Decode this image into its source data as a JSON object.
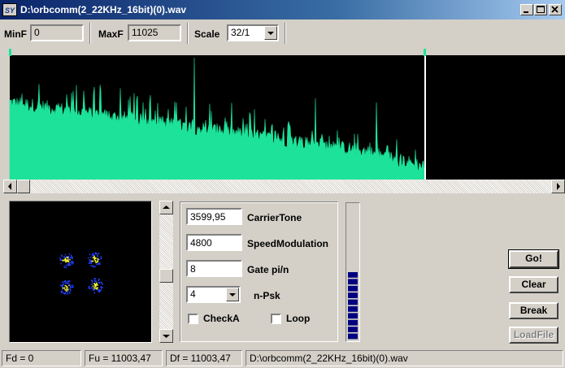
{
  "window": {
    "title": "D:\\orbcomm(2_22KHz_16bit)(0).wav",
    "icon_label": "SY",
    "minimize_icon": "minimize-icon",
    "maximize_icon": "maximize-icon",
    "close_icon": "close-icon"
  },
  "toolbar": {
    "minf_label": "MinF",
    "minf_value": "0",
    "maxf_label": "MaxF",
    "maxf_value": "11025",
    "scale_label": "Scale",
    "scale_value": "32/1"
  },
  "params": {
    "carrier_value": "3599,95",
    "carrier_label": "CarrierTone",
    "speed_value": "4800",
    "speed_label": "SpeedModulation",
    "gate_value": "8",
    "gate_label": "Gate pi/n",
    "psk_value": "4",
    "psk_label": "n-Psk",
    "checka_label": "CheckA",
    "loop_label": "Loop"
  },
  "buttons": {
    "go": "Go!",
    "clear": "Clear",
    "break": "Break",
    "loadfile": "LoadFile"
  },
  "level_meter": {
    "lit_segments": 10,
    "total_segments": 20,
    "color": "#000080"
  },
  "status": {
    "fd": "Fd = 0",
    "fu": "Fu = 11003,47",
    "df": "Df = 11003,47",
    "file": "D:\\orbcomm(2_22KHz_16bit)(0).wav"
  },
  "colors": {
    "spectrum": "#1de39a",
    "constellation_core": "#ffff40",
    "constellation_edge": "#2040ff"
  }
}
